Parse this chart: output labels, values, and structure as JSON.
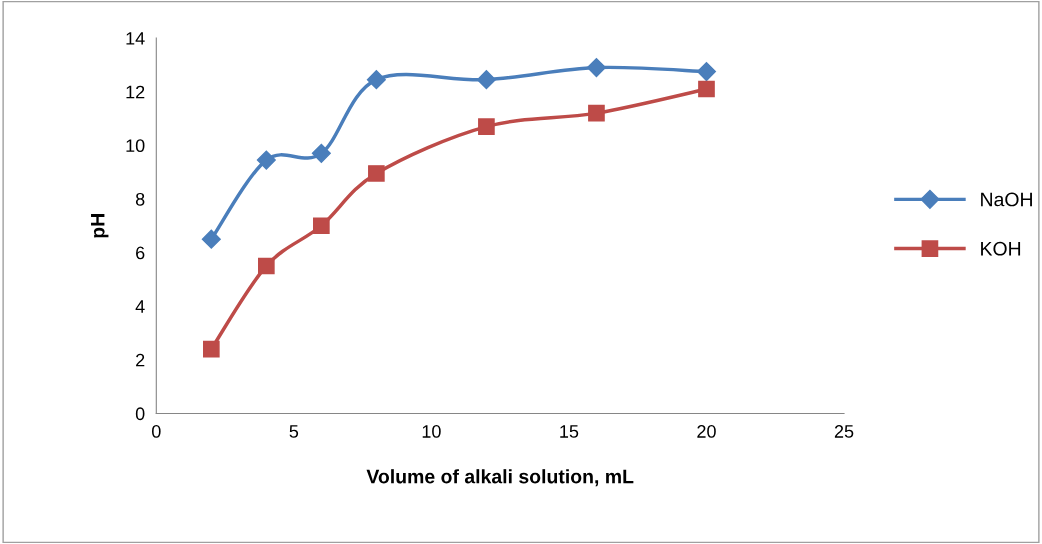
{
  "chart_data": {
    "type": "line",
    "xlabel": "Volume of alkali solution, mL",
    "ylabel": "pH",
    "x": [
      2,
      4,
      6,
      8,
      12,
      16,
      20
    ],
    "series": [
      {
        "name": "NaOH",
        "color": "#4a7ebb",
        "marker": "diamond",
        "values": [
          6.5,
          9.45,
          9.7,
          12.45,
          12.45,
          12.9,
          12.75
        ]
      },
      {
        "name": "KOH",
        "color": "#be4b48",
        "marker": "square",
        "values": [
          2.4,
          5.5,
          7.0,
          8.95,
          10.7,
          11.2,
          12.1
        ]
      }
    ],
    "xlim": [
      0,
      25
    ],
    "xticks": [
      0,
      5,
      10,
      15,
      20,
      25
    ],
    "ylim": [
      0,
      14
    ],
    "yticks": [
      0,
      2,
      4,
      6,
      8,
      10,
      12,
      14
    ],
    "grid": false,
    "legend": "right",
    "line_style": "solid"
  }
}
